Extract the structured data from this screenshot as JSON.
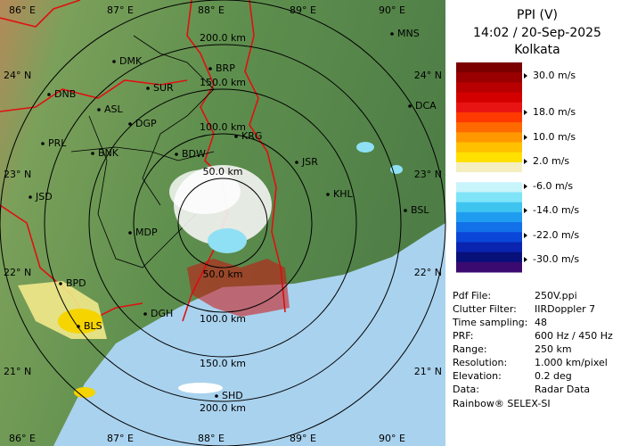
{
  "map": {
    "lon_labels": [
      "86° E",
      "87° E",
      "88° E",
      "89° E",
      "90° E"
    ],
    "lat_labels": [
      "24° N",
      "23° N",
      "22° N",
      "21° N"
    ],
    "range_rings": [
      "50.0 km",
      "100.0 km",
      "150.0 km",
      "200.0 km"
    ],
    "cities": [
      "MNS",
      "DMK",
      "BRP",
      "SUR",
      "DNB",
      "ASL",
      "DCA",
      "DGP",
      "KRG",
      "PRL",
      "BNK",
      "BDW",
      "JSR",
      "KHL",
      "JSD",
      "BSL",
      "MDP",
      "BPD",
      "BLS",
      "DGH",
      "SHD"
    ]
  },
  "panel": {
    "title": "PPI (V)",
    "time": "14:02 / 20-Sep-2025",
    "station": "Kolkata",
    "legend": [
      "30.0 m/s",
      "18.0 m/s",
      "10.0 m/s",
      "2.0 m/s",
      "-6.0 m/s",
      "-14.0 m/s",
      "-22.0 m/s",
      "-30.0 m/s"
    ],
    "info": [
      [
        "Pdf File:",
        "250V.ppi"
      ],
      [
        "Clutter Filter:",
        "IIRDoppler 7"
      ],
      [
        "Time sampling:",
        "48"
      ],
      [
        "PRF:",
        "600 Hz / 450 Hz"
      ],
      [
        "Range:",
        "250 km"
      ],
      [
        "Resolution:",
        "1.000 km/pixel"
      ],
      [
        "Elevation:",
        "0.2 deg"
      ],
      [
        "Data:",
        "Radar Data"
      ]
    ],
    "footer": "Rainbow® SELEX-SI"
  }
}
